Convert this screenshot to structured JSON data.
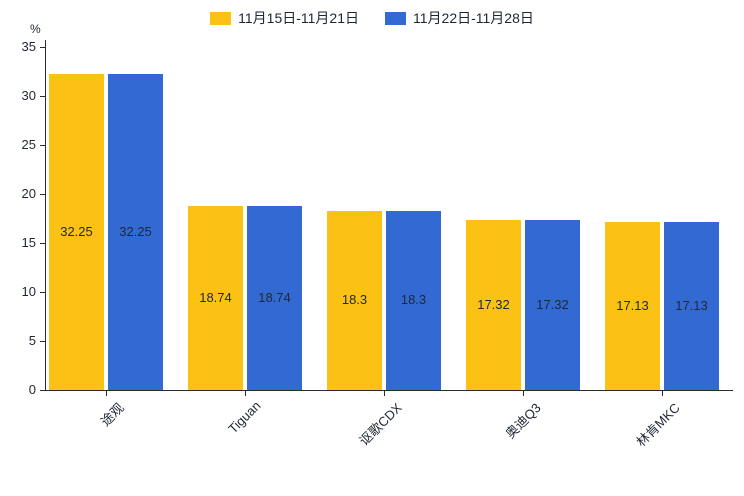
{
  "chart_data": {
    "type": "bar",
    "categories": [
      "途观",
      "Tiguan",
      "讴歌CDX",
      "奥迪Q3",
      "林肯MKC"
    ],
    "series": [
      {
        "name": "11月15日-11月21日",
        "color": "#fbc114",
        "values": [
          32.25,
          18.74,
          18.3,
          17.32,
          17.13
        ]
      },
      {
        "name": "11月22日-11月28日",
        "color": "#3269d2",
        "values": [
          32.25,
          18.74,
          18.3,
          17.32,
          17.13
        ]
      }
    ],
    "title": "",
    "xlabel": "",
    "ylabel": "%",
    "ylim": [
      0,
      35
    ],
    "yticks": [
      0,
      5,
      10,
      15,
      20,
      25,
      30,
      35
    ],
    "grid": false,
    "legend_position": "top",
    "data_labels": "centered-in-bar"
  }
}
